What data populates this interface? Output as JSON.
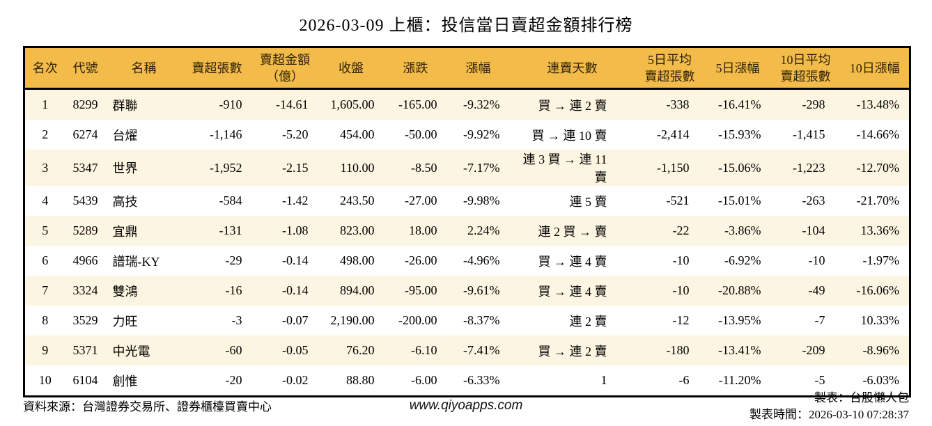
{
  "title": "2026-03-09 上櫃：投信當日賣超金額排行榜",
  "colors": {
    "header_bg": "#F3BB4A",
    "row_alt_bg": "#FCF5E1",
    "negative_text": "#007E00",
    "positive_text": "#DE1212",
    "border": "#000000"
  },
  "table": {
    "headers": [
      "名次",
      "代號",
      "名稱",
      "賣超張數",
      "賣超金額\n（億）",
      "收盤",
      "漲跌",
      "漲幅",
      "連賣天數",
      "5日平均\n賣超張數",
      "5日漲幅",
      "10日平均\n賣超張數",
      "10日漲幅"
    ],
    "rows": [
      {
        "rank": "1",
        "code": "8299",
        "name": "群聯",
        "sell_volume": "-910",
        "sell_amount": "-14.61",
        "close": "1,605.00",
        "change": "-165.00",
        "change_pct": "-9.32%",
        "streak": "買 → 連 2 賣",
        "avg5": "-338",
        "pct5": "-16.41%",
        "avg10": "-298",
        "pct10": "-13.48%"
      },
      {
        "rank": "2",
        "code": "6274",
        "name": "台燿",
        "sell_volume": "-1,146",
        "sell_amount": "-5.20",
        "close": "454.00",
        "change": "-50.00",
        "change_pct": "-9.92%",
        "streak": "買 → 連 10 賣",
        "avg5": "-2,414",
        "pct5": "-15.93%",
        "avg10": "-1,415",
        "pct10": "-14.66%"
      },
      {
        "rank": "3",
        "code": "5347",
        "name": "世界",
        "sell_volume": "-1,952",
        "sell_amount": "-2.15",
        "close": "110.00",
        "change": "-8.50",
        "change_pct": "-7.17%",
        "streak": "連 3 買 → 連 11 賣",
        "avg5": "-1,150",
        "pct5": "-15.06%",
        "avg10": "-1,223",
        "pct10": "-12.70%"
      },
      {
        "rank": "4",
        "code": "5439",
        "name": "高技",
        "sell_volume": "-584",
        "sell_amount": "-1.42",
        "close": "243.50",
        "change": "-27.00",
        "change_pct": "-9.98%",
        "streak": "連 5 賣",
        "avg5": "-521",
        "pct5": "-15.01%",
        "avg10": "-263",
        "pct10": "-21.70%"
      },
      {
        "rank": "5",
        "code": "5289",
        "name": "宜鼎",
        "sell_volume": "-131",
        "sell_amount": "-1.08",
        "close": "823.00",
        "change": "18.00",
        "change_pct": "2.24%",
        "streak": "連 2 買 → 賣",
        "avg5": "-22",
        "pct5": "-3.86%",
        "avg10": "-104",
        "pct10": "13.36%"
      },
      {
        "rank": "6",
        "code": "4966",
        "name": "譜瑞-KY",
        "sell_volume": "-29",
        "sell_amount": "-0.14",
        "close": "498.00",
        "change": "-26.00",
        "change_pct": "-4.96%",
        "streak": "買 → 連 4 賣",
        "avg5": "-10",
        "pct5": "-6.92%",
        "avg10": "-10",
        "pct10": "-1.97%"
      },
      {
        "rank": "7",
        "code": "3324",
        "name": "雙鴻",
        "sell_volume": "-16",
        "sell_amount": "-0.14",
        "close": "894.00",
        "change": "-95.00",
        "change_pct": "-9.61%",
        "streak": "買 → 連 4 賣",
        "avg5": "-10",
        "pct5": "-20.88%",
        "avg10": "-49",
        "pct10": "-16.06%"
      },
      {
        "rank": "8",
        "code": "3529",
        "name": "力旺",
        "sell_volume": "-3",
        "sell_amount": "-0.07",
        "close": "2,190.00",
        "change": "-200.00",
        "change_pct": "-8.37%",
        "streak": "連 2 賣",
        "avg5": "-12",
        "pct5": "-13.95%",
        "avg10": "-7",
        "pct10": "10.33%"
      },
      {
        "rank": "9",
        "code": "5371",
        "name": "中光電",
        "sell_volume": "-60",
        "sell_amount": "-0.05",
        "close": "76.20",
        "change": "-6.10",
        "change_pct": "-7.41%",
        "streak": "買 → 連 2 賣",
        "avg5": "-180",
        "pct5": "-13.41%",
        "avg10": "-209",
        "pct10": "-8.96%"
      },
      {
        "rank": "10",
        "code": "6104",
        "name": "創惟",
        "sell_volume": "-20",
        "sell_amount": "-0.02",
        "close": "88.80",
        "change": "-6.00",
        "change_pct": "-6.33%",
        "streak": "1",
        "avg5": "-6",
        "pct5": "-11.20%",
        "avg10": "-5",
        "pct10": "-6.03%"
      }
    ]
  },
  "footer": {
    "source": "資料來源：台灣證券交易所、證券櫃檯買賣中心",
    "website": "www.qiyoapps.com",
    "maker": "製表：台股懶人包",
    "made_at": "製表時間：2026-03-10 07:28:37"
  },
  "chart_data": {
    "type": "table",
    "title": "2026-03-09 上櫃：投信當日賣超金額排行榜",
    "columns": [
      "名次",
      "代號",
      "名稱",
      "賣超張數",
      "賣超金額（億）",
      "收盤",
      "漲跌",
      "漲幅",
      "連賣天數",
      "5日平均賣超張數",
      "5日漲幅",
      "10日平均賣超張數",
      "10日漲幅"
    ],
    "rows": [
      [
        "1",
        "8299",
        "群聯",
        "-910",
        "-14.61",
        "1,605.00",
        "-165.00",
        "-9.32%",
        "買 → 連 2 賣",
        "-338",
        "-16.41%",
        "-298",
        "-13.48%"
      ],
      [
        "2",
        "6274",
        "台燿",
        "-1,146",
        "-5.20",
        "454.00",
        "-50.00",
        "-9.92%",
        "買 → 連 10 賣",
        "-2,414",
        "-15.93%",
        "-1,415",
        "-14.66%"
      ],
      [
        "3",
        "5347",
        "世界",
        "-1,952",
        "-2.15",
        "110.00",
        "-8.50",
        "-7.17%",
        "連 3 買 → 連 11 賣",
        "-1,150",
        "-15.06%",
        "-1,223",
        "-12.70%"
      ],
      [
        "4",
        "5439",
        "高技",
        "-584",
        "-1.42",
        "243.50",
        "-27.00",
        "-9.98%",
        "連 5 賣",
        "-521",
        "-15.01%",
        "-263",
        "-21.70%"
      ],
      [
        "5",
        "5289",
        "宜鼎",
        "-131",
        "-1.08",
        "823.00",
        "18.00",
        "2.24%",
        "連 2 買 → 賣",
        "-22",
        "-3.86%",
        "-104",
        "13.36%"
      ],
      [
        "6",
        "4966",
        "譜瑞-KY",
        "-29",
        "-0.14",
        "498.00",
        "-26.00",
        "-4.96%",
        "買 → 連 4 賣",
        "-10",
        "-6.92%",
        "-10",
        "-1.97%"
      ],
      [
        "7",
        "3324",
        "雙鴻",
        "-16",
        "-0.14",
        "894.00",
        "-95.00",
        "-9.61%",
        "買 → 連 4 賣",
        "-10",
        "-20.88%",
        "-49",
        "-16.06%"
      ],
      [
        "8",
        "3529",
        "力旺",
        "-3",
        "-0.07",
        "2,190.00",
        "-200.00",
        "-8.37%",
        "連 2 賣",
        "-12",
        "-13.95%",
        "-7",
        "10.33%"
      ],
      [
        "9",
        "5371",
        "中光電",
        "-60",
        "-0.05",
        "76.20",
        "-6.10",
        "-7.41%",
        "買 → 連 2 賣",
        "-180",
        "-13.41%",
        "-209",
        "-8.96%"
      ],
      [
        "10",
        "6104",
        "創惟",
        "-20",
        "-0.02",
        "88.80",
        "-6.00",
        "-6.33%",
        "1",
        "-6",
        "-11.20%",
        "-5",
        "-6.03%"
      ]
    ]
  }
}
